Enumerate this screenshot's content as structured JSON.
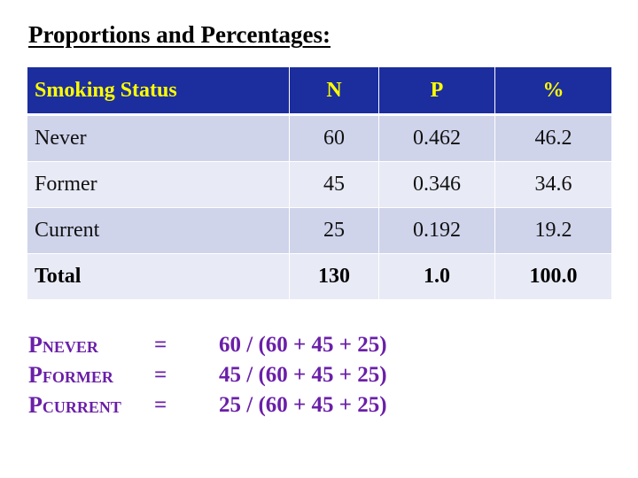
{
  "title": "Proportions and Percentages:",
  "table": {
    "headers": [
      "Smoking Status",
      "N",
      "P",
      "%"
    ],
    "rows": [
      [
        "Never",
        "60",
        "0.462",
        "46.2"
      ],
      [
        "Former",
        "45",
        "0.346",
        "34.6"
      ],
      [
        "Current",
        "25",
        "0.192",
        "19.2"
      ]
    ],
    "total": [
      "Total",
      "130",
      "1.0",
      "100.0"
    ]
  },
  "formulas": [
    {
      "p": "P",
      "sub": "NEVER",
      "eq": "=",
      "expr": "60 / (60 + 45 + 25)"
    },
    {
      "p": "P",
      "sub": "FORMER",
      "eq": "=",
      "expr": "45 / (60 + 45 + 25)"
    },
    {
      "p": "P",
      "sub": "CURRENT",
      "eq": "=",
      "expr": "25 / (60 + 45 + 25)"
    }
  ],
  "colors": {
    "header_bg": "#1c2d9e",
    "header_text": "#ffff00",
    "row_odd": "#cfd4eb",
    "row_even": "#e8eaf5",
    "formula_text": "#6a1fa8"
  }
}
